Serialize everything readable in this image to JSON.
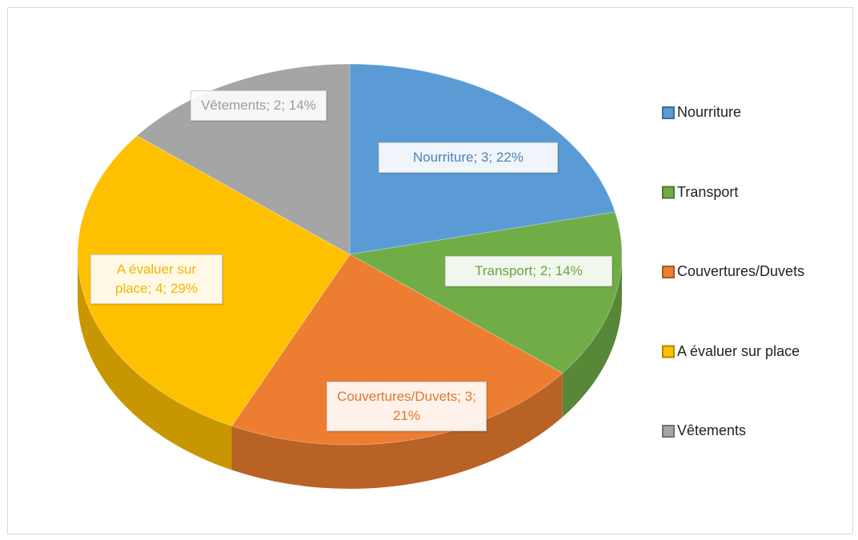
{
  "chart_data": {
    "type": "pie3d",
    "categories": [
      "Nourriture",
      "Transport",
      "Couvertures/Duvets",
      "A évaluer sur place",
      "Vêtements"
    ],
    "values": [
      3,
      2,
      3,
      4,
      2
    ],
    "value_labels": [
      "Nourriture; 3; 22%",
      "Transport; 2; 14%",
      "Couvertures/Duvets; 3; 21%",
      "A évaluer sur place; 4; 29%",
      "Vêtements; 2; 14%"
    ],
    "colors": [
      "#5b9bd5",
      "#70ad47",
      "#ed7d31",
      "#ffc000",
      "#a5a5a5"
    ],
    "legend": "right"
  }
}
